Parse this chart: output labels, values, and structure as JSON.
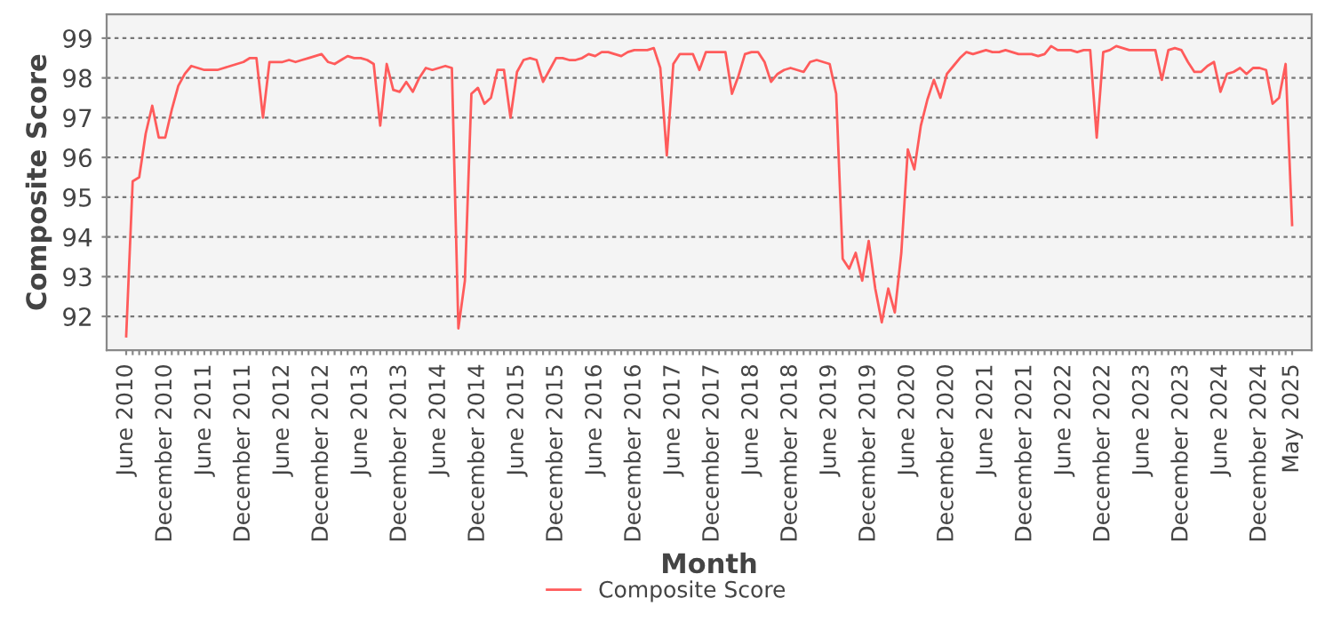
{
  "chart_data": {
    "type": "line",
    "xlabel": "Month",
    "ylabel": "Composite Score",
    "categories": [
      "June 2010",
      null,
      null,
      null,
      null,
      null,
      "December 2010",
      null,
      null,
      null,
      null,
      null,
      "June 2011",
      null,
      null,
      null,
      null,
      null,
      "December 2011",
      null,
      null,
      null,
      null,
      null,
      "June 2012",
      null,
      null,
      null,
      null,
      null,
      "December 2012",
      null,
      null,
      null,
      null,
      null,
      "June 2013",
      null,
      null,
      null,
      null,
      null,
      "December 2013",
      null,
      null,
      null,
      null,
      null,
      "June 2014",
      null,
      null,
      null,
      null,
      null,
      "December 2014",
      null,
      null,
      null,
      null,
      null,
      "June 2015",
      null,
      null,
      null,
      null,
      null,
      "December 2015",
      null,
      null,
      null,
      null,
      null,
      "June 2016",
      null,
      null,
      null,
      null,
      null,
      "December 2016",
      null,
      null,
      null,
      null,
      null,
      "June 2017",
      null,
      null,
      null,
      null,
      null,
      "December 2017",
      null,
      null,
      null,
      null,
      null,
      "June 2018",
      null,
      null,
      null,
      null,
      null,
      "December 2018",
      null,
      null,
      null,
      null,
      null,
      "June 2019",
      null,
      null,
      null,
      null,
      null,
      "December 2019",
      null,
      null,
      null,
      null,
      null,
      "June 2020",
      null,
      null,
      null,
      null,
      null,
      "December 2020",
      null,
      null,
      null,
      null,
      null,
      "June 2021",
      null,
      null,
      null,
      null,
      null,
      "December 2021",
      null,
      null,
      null,
      null,
      null,
      "June 2022",
      null,
      null,
      null,
      null,
      null,
      "December 2022",
      null,
      null,
      null,
      null,
      null,
      "June 2023",
      null,
      null,
      null,
      null,
      null,
      "December 2023",
      null,
      null,
      null,
      null,
      null,
      "June 2024",
      null,
      null,
      null,
      null,
      null,
      "December 2024",
      null,
      null,
      null,
      null,
      "May 2025"
    ],
    "series": [
      {
        "name": "Composite Score",
        "color": "#ff5b5b",
        "values": [
          91.5,
          95.4,
          95.5,
          96.6,
          97.3,
          96.5,
          96.5,
          97.2,
          97.8,
          98.1,
          98.3,
          98.25,
          98.2,
          98.2,
          98.2,
          98.25,
          98.3,
          98.35,
          98.4,
          98.5,
          98.5,
          97.0,
          98.4,
          98.4,
          98.4,
          98.45,
          98.4,
          98.45,
          98.5,
          98.55,
          98.6,
          98.4,
          98.35,
          98.45,
          98.55,
          98.5,
          98.5,
          98.45,
          98.35,
          96.8,
          98.35,
          97.7,
          97.65,
          97.9,
          97.65,
          98.0,
          98.25,
          98.2,
          98.25,
          98.3,
          98.25,
          91.7,
          92.9,
          97.6,
          97.75,
          97.35,
          97.5,
          98.2,
          98.2,
          97.0,
          98.15,
          98.45,
          98.5,
          98.45,
          97.9,
          98.2,
          98.5,
          98.5,
          98.45,
          98.45,
          98.5,
          98.6,
          98.55,
          98.65,
          98.65,
          98.6,
          98.55,
          98.65,
          98.7,
          98.7,
          98.7,
          98.75,
          98.25,
          96.05,
          98.35,
          98.6,
          98.6,
          98.6,
          98.2,
          98.65,
          98.65,
          98.65,
          98.65,
          97.6,
          98.05,
          98.6,
          98.65,
          98.65,
          98.4,
          97.9,
          98.1,
          98.2,
          98.25,
          98.2,
          98.15,
          98.4,
          98.45,
          98.4,
          98.35,
          97.6,
          93.45,
          93.2,
          93.6,
          92.9,
          93.9,
          92.7,
          91.85,
          92.7,
          92.1,
          93.6,
          96.2,
          95.7,
          96.8,
          97.45,
          97.95,
          97.5,
          98.1,
          98.3,
          98.5,
          98.65,
          98.6,
          98.65,
          98.7,
          98.65,
          98.65,
          98.7,
          98.65,
          98.6,
          98.6,
          98.6,
          98.55,
          98.6,
          98.8,
          98.7,
          98.7,
          98.7,
          98.65,
          98.7,
          98.7,
          96.5,
          98.65,
          98.7,
          98.8,
          98.75,
          98.7,
          98.7,
          98.7,
          98.7,
          98.7,
          97.95,
          98.7,
          98.75,
          98.7,
          98.4,
          98.15,
          98.15,
          98.3,
          98.4,
          97.65,
          98.1,
          98.15,
          98.25,
          98.1,
          98.25,
          98.25,
          98.2,
          97.35,
          97.5,
          98.35,
          94.3
        ]
      }
    ],
    "ylim": [
      91.15,
      99.6
    ],
    "yticks": [
      92,
      93,
      94,
      95,
      96,
      97,
      98,
      99
    ],
    "grid": "y",
    "legend": "bottom",
    "marker": "none",
    "line_style": "solid"
  }
}
